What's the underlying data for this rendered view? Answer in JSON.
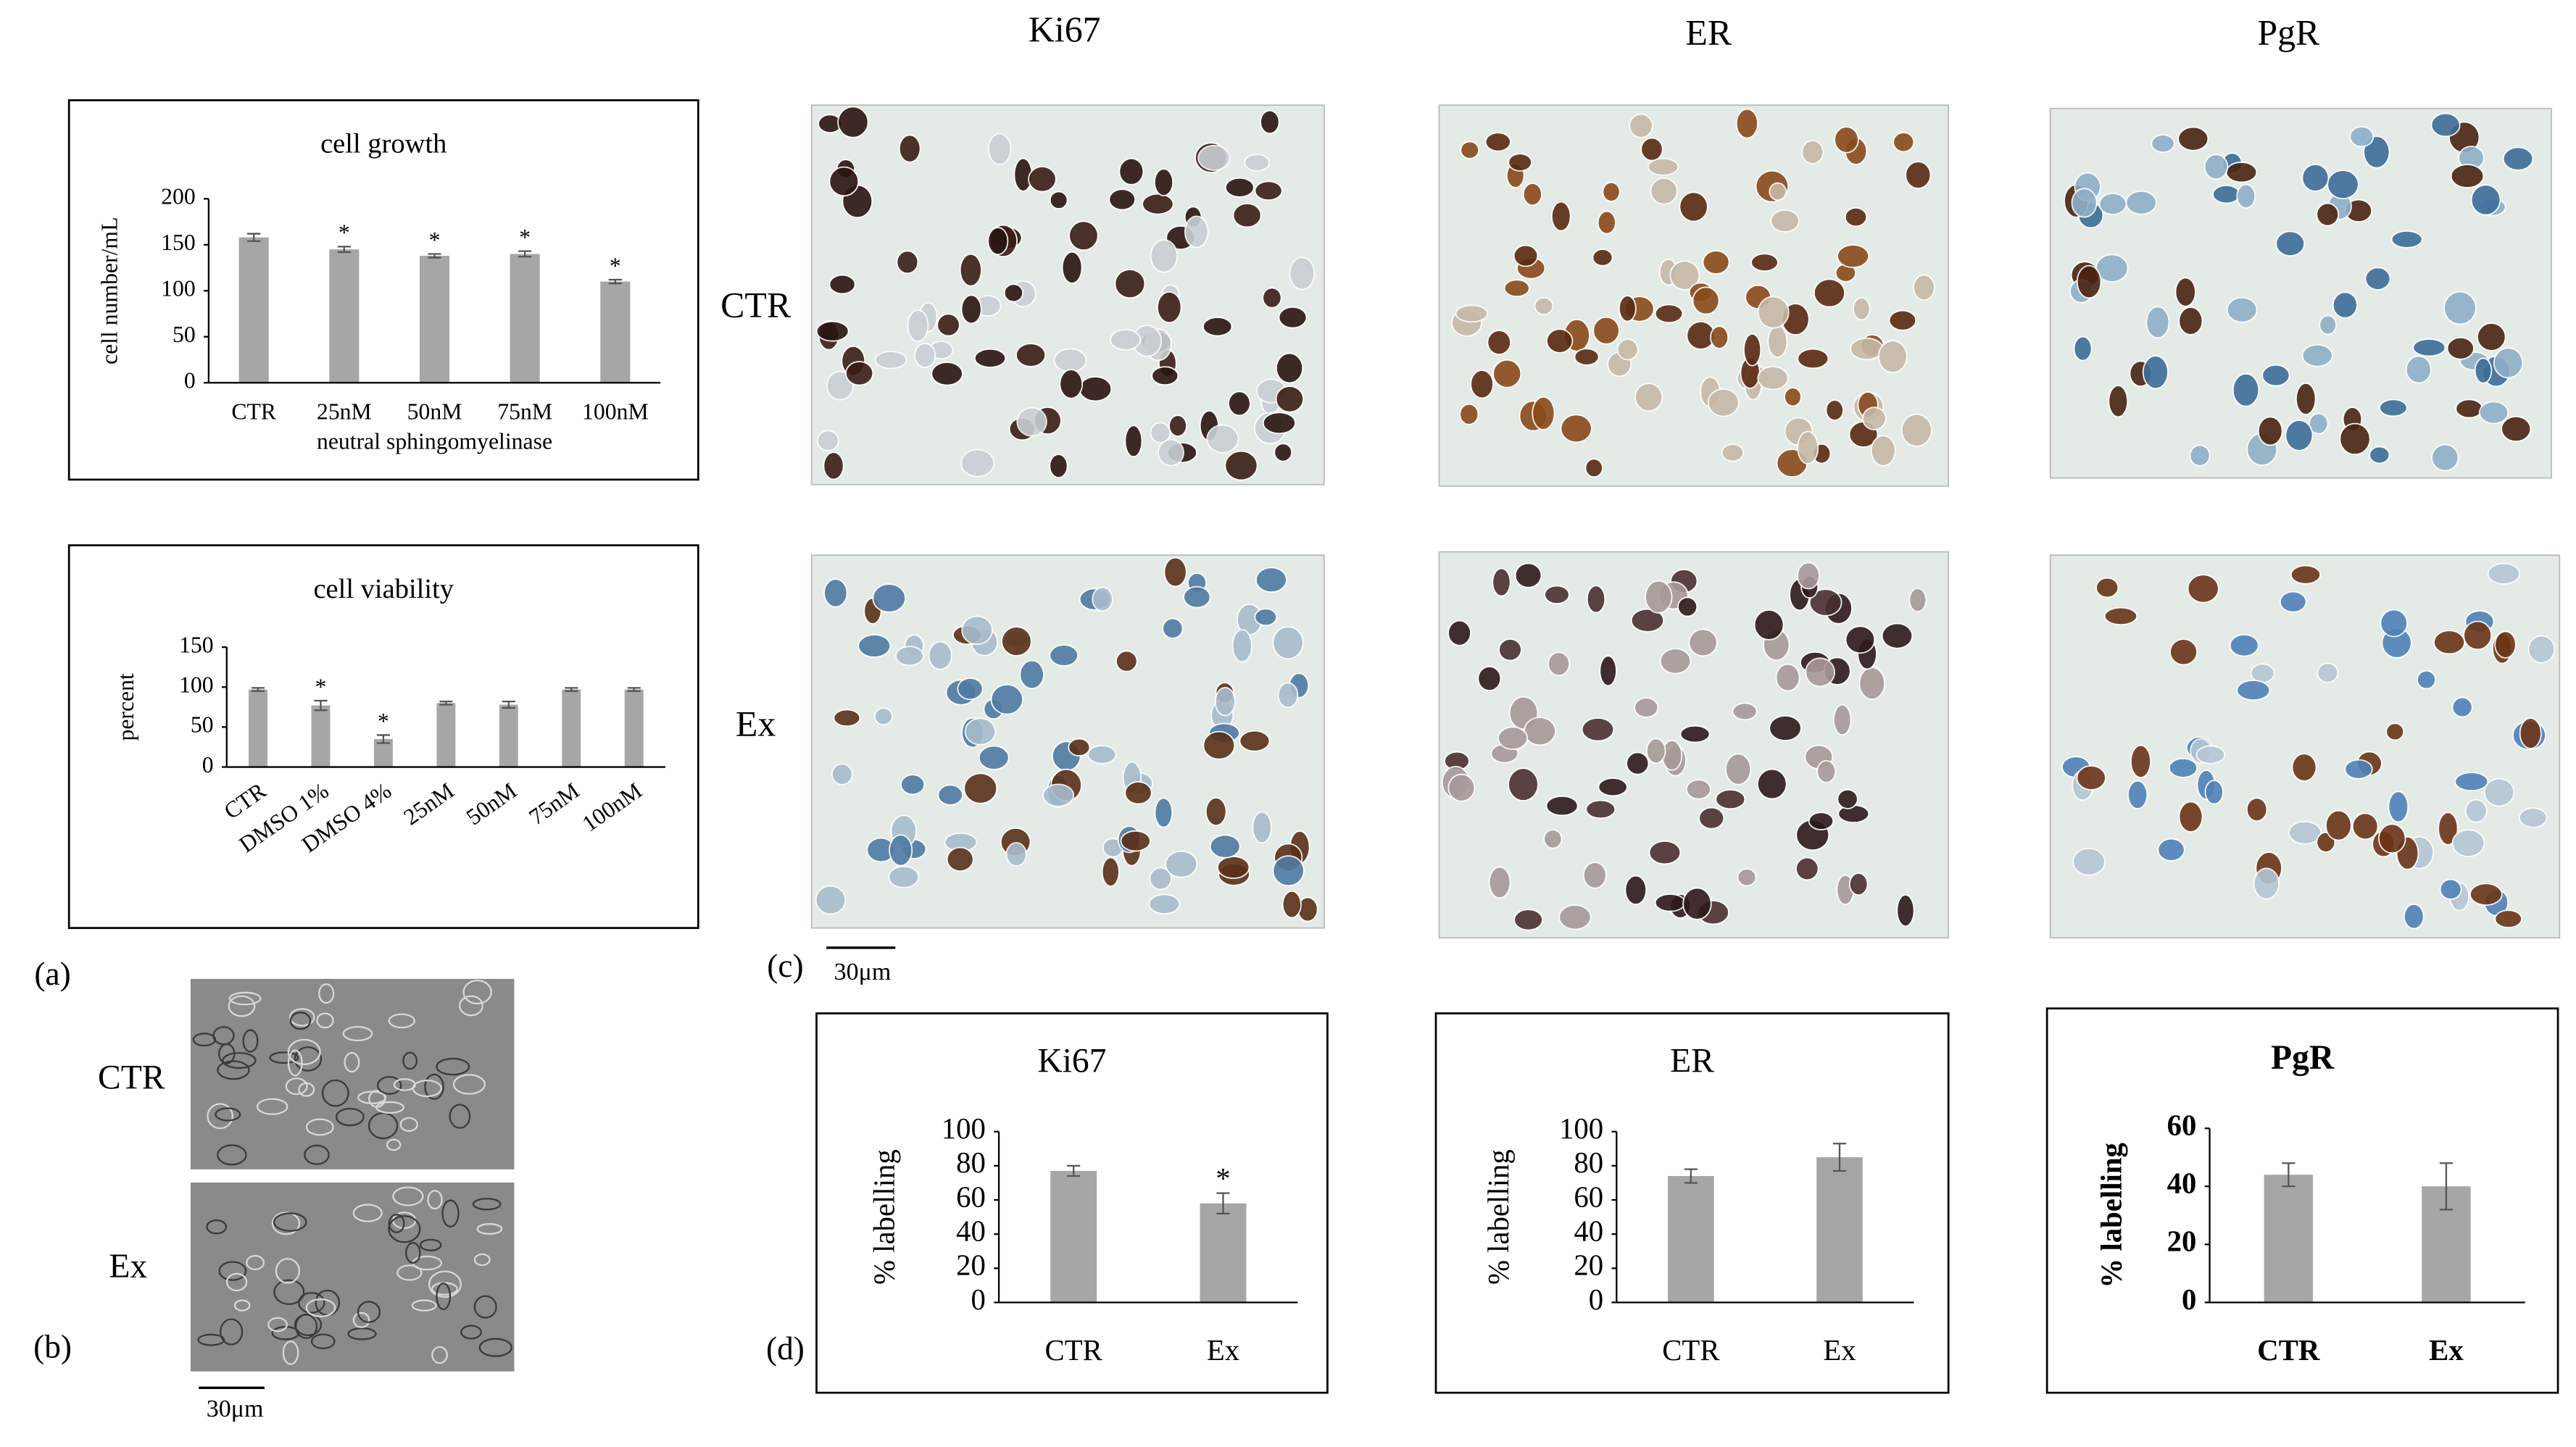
{
  "chart_data": [
    {
      "type": "bar",
      "title": "cell growth",
      "x_label": "neutral sphingomyelinase",
      "y_label": "cell number/mL",
      "categories": [
        "CTR",
        "25nM",
        "50nM",
        "75nM",
        "100nM"
      ],
      "values": [
        158,
        145,
        138,
        140,
        110
      ],
      "errors": [
        4,
        3,
        2,
        3,
        2
      ],
      "significance": [
        null,
        "*",
        "*",
        "*",
        "*"
      ],
      "color": "#a6a6a6",
      "ylim": [
        0,
        200
      ],
      "yticks": [
        0,
        50,
        100,
        150,
        200
      ]
    },
    {
      "type": "bar",
      "title": "cell viability",
      "y_label": "percent",
      "categories": [
        "CTR",
        "DMSO 1%",
        "DMSO 4%",
        "25nM",
        "50nM",
        "75nM",
        "100nM"
      ],
      "values": [
        97,
        77,
        35,
        80,
        78,
        97,
        97
      ],
      "errors": [
        2,
        6,
        5,
        2,
        4,
        2,
        2
      ],
      "significance": [
        null,
        "*",
        "*",
        null,
        null,
        null,
        null
      ],
      "color": "#a6a6a6",
      "ylim": [
        0,
        150
      ],
      "yticks": [
        0,
        50,
        100,
        150
      ]
    },
    {
      "type": "bar",
      "title": "Ki67",
      "y_label": "% labelling",
      "categories": [
        "CTR",
        "Ex"
      ],
      "values": [
        77,
        58
      ],
      "errors": [
        3,
        6
      ],
      "significance": [
        null,
        "*"
      ],
      "color": "#a6a6a6",
      "ylim": [
        0,
        100
      ],
      "yticks": [
        0,
        20,
        40,
        60,
        80,
        100
      ]
    },
    {
      "type": "bar",
      "title": "ER",
      "y_label": "% labelling",
      "categories": [
        "CTR",
        "Ex"
      ],
      "values": [
        74,
        85
      ],
      "errors": [
        4,
        8
      ],
      "significance": [
        null,
        null
      ],
      "color": "#a6a6a6",
      "ylim": [
        0,
        100
      ],
      "yticks": [
        0,
        20,
        40,
        60,
        80,
        100
      ]
    },
    {
      "type": "bar",
      "title": "PgR",
      "y_label": "% labelling",
      "categories": [
        "CTR",
        "Ex"
      ],
      "values": [
        44,
        40
      ],
      "errors": [
        4,
        8
      ],
      "significance": [
        null,
        null
      ],
      "color": "#a6a6a6",
      "ylim": [
        0,
        60
      ],
      "yticks": [
        0,
        20,
        40,
        60
      ],
      "bold": true
    }
  ],
  "panels": {
    "a": "(a)",
    "b": "(b)",
    "c": "(c)",
    "d": "(d)"
  },
  "columns": [
    "Ki67",
    "ER",
    "PgR"
  ],
  "rows_c": [
    "CTR",
    "Ex"
  ],
  "rows_b": [
    "CTR",
    "Ex"
  ],
  "scale_bars": [
    "30μm",
    "30μm"
  ]
}
